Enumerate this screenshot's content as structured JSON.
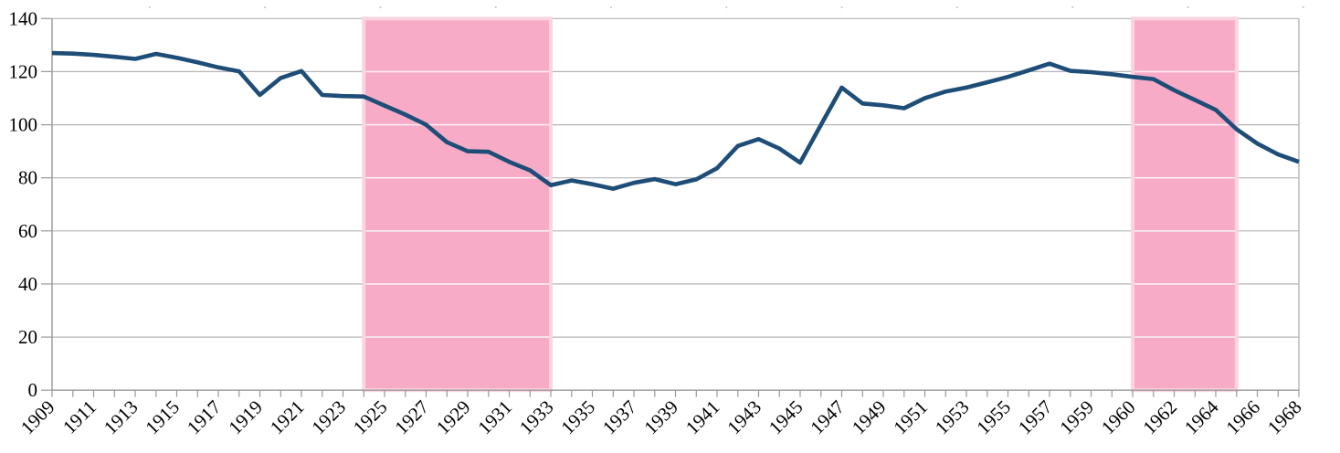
{
  "chart_data": {
    "type": "line",
    "title": "",
    "xlabel": "",
    "ylabel": "",
    "ylim": [
      0,
      140
    ],
    "y_ticks": [
      0,
      20,
      40,
      60,
      80,
      100,
      120,
      140
    ],
    "grid": true,
    "legend": "none",
    "x_label_every": 2,
    "x_label_rotation_deg": -45,
    "categories": [
      "1909",
      "1910",
      "1911",
      "1912",
      "1913",
      "1914",
      "1915",
      "1916",
      "1917",
      "1918",
      "1919",
      "1920",
      "1921",
      "1922",
      "1923",
      "1924",
      "1925",
      "1926",
      "1927",
      "1928",
      "1929",
      "1930",
      "1931",
      "1932",
      "1933",
      "1934",
      "1935",
      "1936",
      "1937",
      "1938",
      "1939",
      "1940",
      "1941",
      "1942",
      "1943",
      "1944",
      "1945",
      "1946",
      "1947",
      "1948",
      "1949",
      "1950",
      "1951",
      "1952",
      "1953",
      "1954",
      "1955",
      "1956",
      "1957",
      "1958",
      "1959",
      "",
      "1960",
      "1961",
      "1962",
      "1963",
      "1964",
      "1965",
      "1966",
      "1967",
      "1968"
    ],
    "series": [
      {
        "name": "index-line",
        "values": [
          127.0,
          126.8,
          126.3,
          125.6,
          124.8,
          126.7,
          125.2,
          123.5,
          121.6,
          120.1,
          111.2,
          117.6,
          120.2,
          111.2,
          110.8,
          110.6,
          107.2,
          103.8,
          100.0,
          93.4,
          90.0,
          89.8,
          86.0,
          82.8,
          77.2,
          79.0,
          77.6,
          75.9,
          78.1,
          79.5,
          77.6,
          79.4,
          83.6,
          92.0,
          94.6,
          91.0,
          85.7,
          100.0,
          114.0,
          108.0,
          107.3,
          106.2,
          110.0,
          112.5,
          114.0,
          116.0,
          118.0,
          120.5,
          123.0,
          120.3,
          119.8,
          119.0,
          118.0,
          117.2,
          113.0,
          109.3,
          105.6,
          98.3,
          92.9,
          88.8,
          86.0
        ]
      }
    ],
    "highlight_bands": [
      {
        "from_category": "1924",
        "to_category": "1933",
        "from_index": 15,
        "to_index": 24
      },
      {
        "from_category": "1960",
        "to_category": "1965",
        "from_index": 52,
        "to_index": 57
      }
    ],
    "colors": {
      "line": "#1e4d78",
      "gridline": "#b5b5b5",
      "axis": "#989898",
      "band_fill": "#f8abc6",
      "band_border": "#fbd4e2",
      "band_inner_gridline": "rgba(255,255,255,0.78)",
      "top_dots": "#c0c0c0",
      "label": "#000000",
      "background": "#ffffff"
    }
  }
}
